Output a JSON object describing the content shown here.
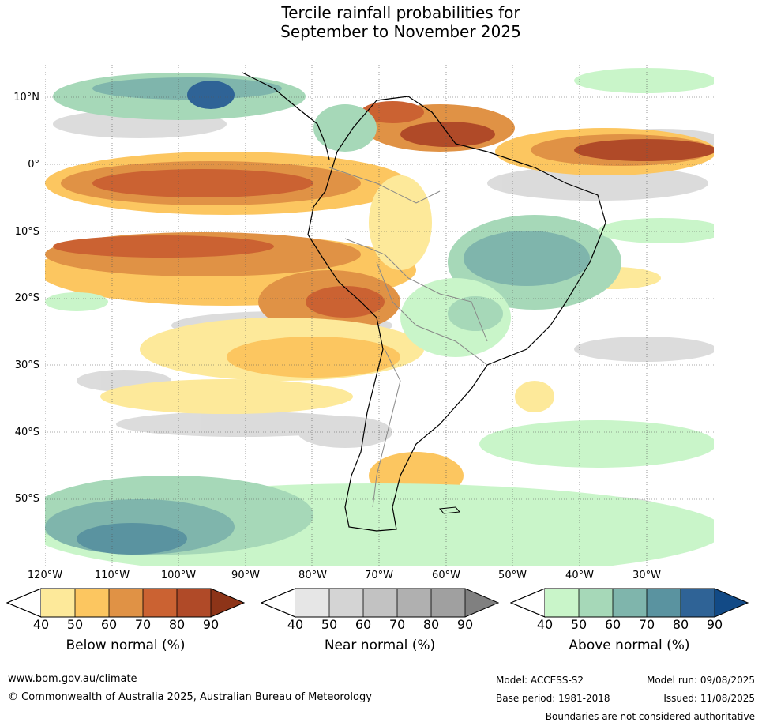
{
  "title": {
    "line1": "Tercile rainfall probabilities for",
    "line2": "September to November 2025"
  },
  "map": {
    "region": "South America and surrounding oceans",
    "lat_labels": [
      "10°N",
      "0°",
      "10°S",
      "20°S",
      "30°S",
      "40°S",
      "50°S"
    ],
    "lon_labels": [
      "120°W",
      "110°W",
      "100°W",
      "90°W",
      "80°W",
      "70°W",
      "60°W",
      "50°W",
      "40°W",
      "30°W"
    ],
    "gridlines": true
  },
  "colorbars": [
    {
      "title": "Below normal (%)",
      "ticks": [
        "40",
        "50",
        "60",
        "70",
        "80",
        "90"
      ],
      "colors": [
        "#fde99a",
        "#fcc660",
        "#e09245",
        "#cb6232",
        "#b04a28",
        "#8d3418"
      ]
    },
    {
      "title": "Near normal (%)",
      "ticks": [
        "40",
        "50",
        "60",
        "70",
        "80",
        "90"
      ],
      "colors": [
        "#e6e6e6",
        "#d4d4d4",
        "#c2c2c2",
        "#b0b0b0",
        "#a0a0a0",
        "#808080"
      ]
    },
    {
      "title": "Above normal (%)",
      "ticks": [
        "40",
        "50",
        "60",
        "70",
        "80",
        "90"
      ],
      "colors": [
        "#c9f5c9",
        "#a6d8b8",
        "#7fb5ac",
        "#5a93a0",
        "#2f6396",
        "#124a86"
      ]
    }
  ],
  "footer": {
    "website": "www.bom.gov.au/climate",
    "copyright": "© Commonwealth of Australia 2025, Australian Bureau of Meteorology",
    "model": "Model: ACCESS-S2",
    "base_period": "Base period: 1981-2018",
    "model_run": "Model run: 09/08/2025",
    "issued": "Issued: 11/08/2025",
    "disclaimer": "Boundaries are not considered authoritative"
  }
}
